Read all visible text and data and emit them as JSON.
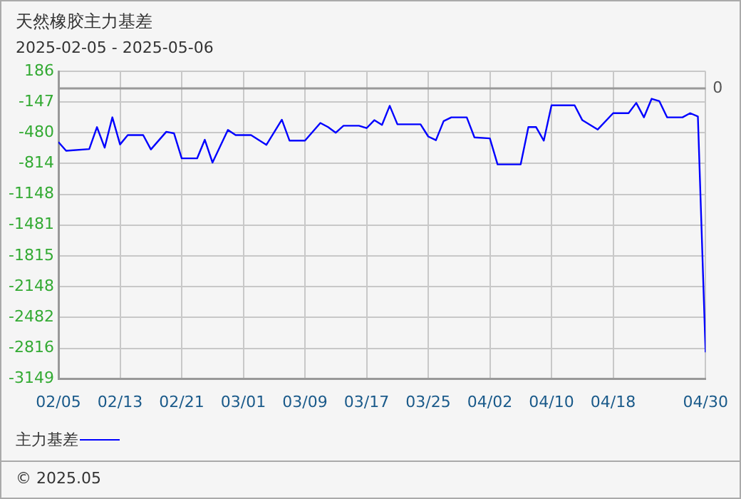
{
  "chart_data": {
    "type": "line",
    "title": "天然橡胶主力基差",
    "subtitle": "2025-02-05 - 2025-05-06",
    "x": [
      "2025-02-05",
      "2025-02-06",
      "2025-02-09",
      "2025-02-10",
      "2025-02-11",
      "2025-02-12",
      "2025-02-13",
      "2025-02-14",
      "2025-02-16",
      "2025-02-17",
      "2025-02-19",
      "2025-02-20",
      "2025-02-21",
      "2025-02-23",
      "2025-02-24",
      "2025-02-25",
      "2025-02-27",
      "2025-02-28",
      "2025-03-02",
      "2025-03-04",
      "2025-03-06",
      "2025-03-07",
      "2025-03-09",
      "2025-03-11",
      "2025-03-12",
      "2025-03-13",
      "2025-03-14",
      "2025-03-16",
      "2025-03-17",
      "2025-03-18",
      "2025-03-19",
      "2025-03-20",
      "2025-03-21",
      "2025-03-24",
      "2025-03-25",
      "2025-03-26",
      "2025-03-27",
      "2025-03-28",
      "2025-03-30",
      "2025-03-31",
      "2025-04-02",
      "2025-04-03",
      "2025-04-06",
      "2025-04-07",
      "2025-04-08",
      "2025-04-09",
      "2025-04-10",
      "2025-04-13",
      "2025-04-14",
      "2025-04-16",
      "2025-04-18",
      "2025-04-20",
      "2025-04-21",
      "2025-04-22",
      "2025-04-23",
      "2025-04-24",
      "2025-04-25",
      "2025-04-27",
      "2025-04-28",
      "2025-04-29",
      "2025-04-30"
    ],
    "series": [
      {
        "name": "主力基差",
        "color": "#0000ff",
        "values": [
          -581,
          -676,
          -657,
          -419,
          -642,
          -313,
          -607,
          -506,
          -506,
          -661,
          -470,
          -486,
          -758,
          -758,
          -556,
          -803,
          -450,
          -506,
          -506,
          -611,
          -339,
          -566,
          -566,
          -374,
          -419,
          -480,
          -404,
          -404,
          -430,
          -344,
          -395,
          -188,
          -389,
          -389,
          -521,
          -561,
          -354,
          -313,
          -313,
          -531,
          -541,
          -823,
          -823,
          -419,
          -419,
          -566,
          -183,
          -183,
          -344,
          -445,
          -268,
          -268,
          -157,
          -313,
          -112,
          -138,
          -313,
          -313,
          -268,
          -303,
          -2861
        ]
      }
    ],
    "xlim": [
      "2025-02-05",
      "2025-04-30"
    ],
    "xticks": [
      {
        "value": "2025-02-05",
        "label": "02/05"
      },
      {
        "value": "2025-02-13",
        "label": "02/13"
      },
      {
        "value": "2025-02-21",
        "label": "02/21"
      },
      {
        "value": "2025-03-01",
        "label": "03/01"
      },
      {
        "value": "2025-03-09",
        "label": "03/09"
      },
      {
        "value": "2025-03-17",
        "label": "03/17"
      },
      {
        "value": "2025-03-25",
        "label": "03/25"
      },
      {
        "value": "2025-04-02",
        "label": "04/02"
      },
      {
        "value": "2025-04-10",
        "label": "04/10"
      },
      {
        "value": "2025-04-18",
        "label": "04/18"
      },
      {
        "value": "2025-04-30",
        "label": "04/30"
      }
    ],
    "ylim": [
      -3149,
      186
    ],
    "yticks": [
      -3149,
      -2816,
      -2482,
      -2148,
      -1815,
      -1481,
      -1148,
      -814,
      -480,
      -147,
      186
    ],
    "ref_lines": [
      {
        "axis": "y",
        "value": 0,
        "label": "0",
        "color": "#999999"
      }
    ],
    "grid": true,
    "legend": "bottom left",
    "marker": "none",
    "line_style": "solid",
    "annotations": [
      "© 2025.05"
    ]
  }
}
